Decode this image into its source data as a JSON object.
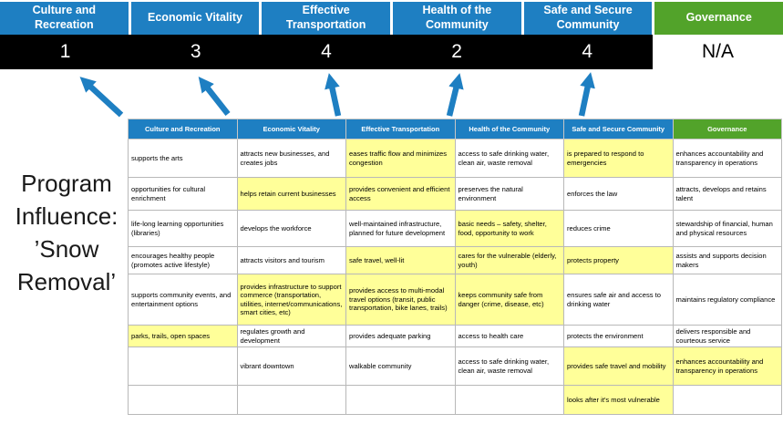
{
  "colors": {
    "pillar_blue": "#1e7fc2",
    "pillar_green": "#52a32a",
    "highlight_yellow": "#ffff99",
    "score_bar": "#000000",
    "arrow_blue": "#1e7fc2"
  },
  "icons": {
    "score_arrow": "arrow-up-icon"
  },
  "title": {
    "text": "Program\nInfluence:\n’Snow\nRemoval’"
  },
  "pillars": [
    {
      "label": "Culture and Recreation",
      "score": "1",
      "header_color": "blue",
      "score_bg": "black"
    },
    {
      "label": "Economic Vitality",
      "score": "3",
      "header_color": "blue",
      "score_bg": "black"
    },
    {
      "label": "Effective Transportation",
      "score": "4",
      "header_color": "blue",
      "score_bg": "black"
    },
    {
      "label": "Health of the Community",
      "score": "2",
      "header_color": "blue",
      "score_bg": "black"
    },
    {
      "label": "Safe and Secure Community",
      "score": "4",
      "header_color": "blue",
      "score_bg": "black"
    },
    {
      "label": "Governance",
      "score": "N/A",
      "header_color": "green",
      "score_bg": "white"
    }
  ],
  "matrix": {
    "headers": [
      {
        "label": "Culture and Recreation",
        "color": "blue"
      },
      {
        "label": "Economic Vitality",
        "color": "blue"
      },
      {
        "label": "Effective Transportation",
        "color": "blue"
      },
      {
        "label": "Health of the Community",
        "color": "blue"
      },
      {
        "label": "Safe and Secure Community",
        "color": "blue"
      },
      {
        "label": "Governance",
        "color": "green"
      }
    ],
    "rows": [
      [
        {
          "text": "supports the arts",
          "highlight": false
        },
        {
          "text": "attracts new businesses, and creates jobs",
          "highlight": false
        },
        {
          "text": "eases traffic flow and minimizes congestion",
          "highlight": true
        },
        {
          "text": "access to safe drinking water, clean air, waste removal",
          "highlight": false
        },
        {
          "text": "is prepared to respond to emergencies",
          "highlight": true
        },
        {
          "text": "enhances accountability and transparency in operations",
          "highlight": false
        }
      ],
      [
        {
          "text": "opportunities for cultural enrichment",
          "highlight": false
        },
        {
          "text": "helps retain current businesses",
          "highlight": true
        },
        {
          "text": "provides convenient and efficient access",
          "highlight": true
        },
        {
          "text": "preserves the natural environment",
          "highlight": false
        },
        {
          "text": "enforces the law",
          "highlight": false
        },
        {
          "text": "attracts, develops and retains talent",
          "highlight": false
        }
      ],
      [
        {
          "text": "life-long learning opportunities (libraries)",
          "highlight": false
        },
        {
          "text": "develops the workforce",
          "highlight": false
        },
        {
          "text": "well-maintained infrastructure, planned for future development",
          "highlight": false
        },
        {
          "text": "basic needs – safety, shelter, food, opportunity to work",
          "highlight": true
        },
        {
          "text": "reduces crime",
          "highlight": false
        },
        {
          "text": "stewardship of financial, human and physical resources",
          "highlight": false
        }
      ],
      [
        {
          "text": "encourages healthy people (promotes active lifestyle)",
          "highlight": false
        },
        {
          "text": "attracts visitors and tourism",
          "highlight": false
        },
        {
          "text": "safe travel, well-lit",
          "highlight": true
        },
        {
          "text": "cares for the vulnerable (elderly, youth)",
          "highlight": true
        },
        {
          "text": "protects property",
          "highlight": true
        },
        {
          "text": "assists and supports decision makers",
          "highlight": false
        }
      ],
      [
        {
          "text": "supports community events, and entertainment options",
          "highlight": false
        },
        {
          "text": "provides infrastructure to support commerce (transportation, utilities, internet/communications, smart cities, etc)",
          "highlight": true
        },
        {
          "text": "provides access to multi-modal travel options (transit, public transportation, bike lanes, trails)",
          "highlight": true
        },
        {
          "text": "keeps community safe from danger (crime, disease, etc)",
          "highlight": true
        },
        {
          "text": "ensures safe air and access to drinking water",
          "highlight": false
        },
        {
          "text": "maintains regulatory compliance",
          "highlight": false
        }
      ],
      [
        {
          "text": "parks, trails, open spaces",
          "highlight": true
        },
        {
          "text": "regulates growth and development",
          "highlight": false
        },
        {
          "text": "provides adequate parking",
          "highlight": false
        },
        {
          "text": "access to health care",
          "highlight": false
        },
        {
          "text": "protects the environment",
          "highlight": false
        },
        {
          "text": "delivers responsible and courteous service",
          "highlight": false
        }
      ],
      [
        {
          "text": "",
          "highlight": false
        },
        {
          "text": "vibrant downtown",
          "highlight": false
        },
        {
          "text": "walkable community",
          "highlight": false
        },
        {
          "text": "access to safe drinking water, clean air, waste removal",
          "highlight": false
        },
        {
          "text": "provides safe travel and mobility",
          "highlight": true
        },
        {
          "text": "enhances accountability and transparency in operations",
          "highlight": true
        }
      ],
      [
        {
          "text": "",
          "highlight": false
        },
        {
          "text": "",
          "highlight": false
        },
        {
          "text": "",
          "highlight": false
        },
        {
          "text": "",
          "highlight": false
        },
        {
          "text": "looks after it's most vulnerable",
          "highlight": true
        },
        {
          "text": "",
          "highlight": false
        }
      ]
    ]
  }
}
